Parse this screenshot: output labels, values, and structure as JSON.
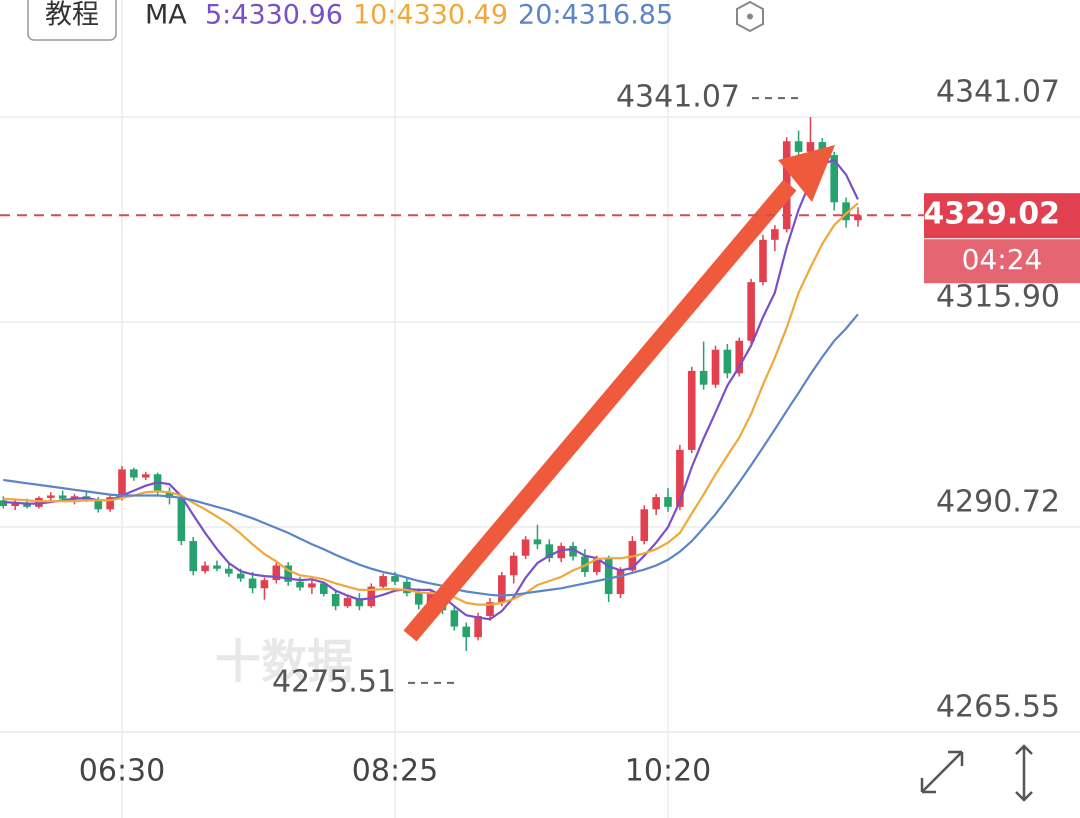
{
  "chart_data": {
    "type": "candlestick",
    "tutorial_button": "教程",
    "indicator_label": "MA",
    "categories": [
      null,
      null,
      null,
      null,
      null,
      null,
      null,
      null,
      null,
      null,
      "06:30",
      null,
      null,
      null,
      null,
      null,
      null,
      null,
      null,
      null,
      null,
      null,
      null,
      null,
      null,
      null,
      null,
      null,
      null,
      null,
      null,
      null,
      null,
      "08:25",
      null,
      null,
      null,
      null,
      null,
      null,
      null,
      null,
      null,
      null,
      null,
      null,
      null,
      null,
      null,
      null,
      null,
      null,
      null,
      null,
      null,
      null,
      "10:20",
      null,
      null,
      null,
      null,
      null,
      null,
      null,
      null,
      null,
      null,
      null,
      null,
      null,
      null,
      null,
      null
    ],
    "ohlc": [
      [
        4294,
        4294.5,
        4293,
        4293.3
      ],
      [
        4293.3,
        4294,
        4292.8,
        4293.6
      ],
      [
        4293.6,
        4294.2,
        4293,
        4293.2
      ],
      [
        4293.2,
        4294.5,
        4293,
        4294.3
      ],
      [
        4294.3,
        4295,
        4293.8,
        4294.6
      ],
      [
        4294.6,
        4295.2,
        4293.9,
        4294.2
      ],
      [
        4294.2,
        4294.8,
        4293.5,
        4294.5
      ],
      [
        4294.5,
        4295,
        4293.8,
        4294
      ],
      [
        4294,
        4294.4,
        4292.5,
        4292.9
      ],
      [
        4292.9,
        4294.8,
        4292.6,
        4294.4
      ],
      [
        4294.4,
        4298.2,
        4294,
        4297.8
      ],
      [
        4297.8,
        4298,
        4296.4,
        4296.8
      ],
      [
        4296.8,
        4297.5,
        4296.5,
        4297.2
      ],
      [
        4297.2,
        4297.4,
        4294.6,
        4295
      ],
      [
        4295,
        4295.6,
        4293.5,
        4294.3
      ],
      [
        4294.3,
        4294.5,
        4288.5,
        4289
      ],
      [
        4289,
        4289.5,
        4284.8,
        4285.3
      ],
      [
        4285.3,
        4286.5,
        4285,
        4286
      ],
      [
        4286,
        4286.6,
        4285.3,
        4285.6
      ],
      [
        4285.6,
        4286.2,
        4284.6,
        4285
      ],
      [
        4285,
        4285.6,
        4284,
        4284.4
      ],
      [
        4284.4,
        4285.2,
        4282.6,
        4283.2
      ],
      [
        4283.2,
        4284.5,
        4281.8,
        4284.2
      ],
      [
        4284.2,
        4286.4,
        4283.8,
        4286
      ],
      [
        4286,
        4286.4,
        4283.5,
        4284
      ],
      [
        4284,
        4284.6,
        4282.9,
        4283.3
      ],
      [
        4283.3,
        4284.2,
        4282.5,
        4283.8
      ],
      [
        4283.8,
        4284,
        4282.2,
        4282.5
      ],
      [
        4282.5,
        4283,
        4280.5,
        4281
      ],
      [
        4281,
        4282.2,
        4280.8,
        4282
      ],
      [
        4282,
        4282.6,
        4280.5,
        4281
      ],
      [
        4281,
        4283.8,
        4280.8,
        4283.4
      ],
      [
        4283.4,
        4285,
        4283,
        4284.7
      ],
      [
        4284.7,
        4285.2,
        4283.6,
        4284
      ],
      [
        4284,
        4284.5,
        4282.2,
        4282.6
      ],
      [
        4282.6,
        4283.2,
        4280.6,
        4281.2
      ],
      [
        4281.2,
        4283,
        4280.8,
        4282.5
      ],
      [
        4282.5,
        4283,
        4280,
        4280.5
      ],
      [
        4280.5,
        4281,
        4278,
        4278.5
      ],
      [
        4278.5,
        4279,
        4275.51,
        4277.2
      ],
      [
        4277.2,
        4280.2,
        4276.8,
        4279.8
      ],
      [
        4279.8,
        4282,
        4279.2,
        4281.5
      ],
      [
        4281.5,
        4285.2,
        4281,
        4284.8
      ],
      [
        4284.8,
        4287.6,
        4283.8,
        4287.2
      ],
      [
        4287.2,
        4289.6,
        4286.8,
        4289.2
      ],
      [
        4289.2,
        4291,
        4288,
        4288.6
      ],
      [
        4288.6,
        4289.2,
        4286.4,
        4286.9
      ],
      [
        4286.9,
        4288.8,
        4286.4,
        4288.4
      ],
      [
        4288.4,
        4288.9,
        4286.6,
        4287.1
      ],
      [
        4287.1,
        4288,
        4284.6,
        4285.2
      ],
      [
        4285.2,
        4287.2,
        4284.8,
        4286.8
      ],
      [
        4286.8,
        4287.2,
        4281.5,
        4282.5
      ],
      [
        4282.5,
        4285.8,
        4282,
        4285.4
      ],
      [
        4285.4,
        4289.6,
        4285,
        4289
      ],
      [
        4289,
        4293.4,
        4288.6,
        4292.9
      ],
      [
        4292.9,
        4294.8,
        4292.2,
        4294.4
      ],
      [
        4294.4,
        4295.5,
        4292.6,
        4293.2
      ],
      [
        4293.2,
        4300.8,
        4292.8,
        4300.2
      ],
      [
        4300.2,
        4310.4,
        4299.8,
        4309.9
      ],
      [
        4309.9,
        4313.5,
        4307.6,
        4308.2
      ],
      [
        4308.2,
        4313,
        4307.8,
        4312.5
      ],
      [
        4312.5,
        4313.2,
        4309,
        4309.6
      ],
      [
        4309.6,
        4314,
        4309.2,
        4313.6
      ],
      [
        4313.6,
        4321.2,
        4313.2,
        4320.8
      ],
      [
        4320.8,
        4326.6,
        4320.4,
        4326
      ],
      [
        4326,
        4327.8,
        4324.6,
        4327.3
      ],
      [
        4327.3,
        4338.6,
        4326.9,
        4338.1
      ],
      [
        4338.1,
        4339.4,
        4336.2,
        4336.8
      ],
      [
        4336.8,
        4341.07,
        4336.4,
        4338
      ],
      [
        4338,
        4338.5,
        4335.8,
        4336.4
      ],
      [
        4336.4,
        4336.8,
        4329.6,
        4330.6
      ],
      [
        4330.6,
        4331.2,
        4327.5,
        4328.4
      ],
      [
        4328.4,
        4330,
        4327.6,
        4329.02
      ]
    ],
    "up_color": "#e2404f",
    "down_color": "#27a26e",
    "ma": [
      {
        "legend_label": "5:4330.96",
        "color": "#7b4fc9",
        "values": [
          4293.8,
          4293.7,
          4293.6,
          4293.6,
          4293.8,
          4294,
          4294.2,
          4294.3,
          4294,
          4294,
          4294.6,
          4295.2,
          4295.8,
          4296.2,
          4296,
          4294.5,
          4292.2,
          4290,
          4288,
          4286.3,
          4285.3,
          4284.9,
          4284.7,
          4284.6,
          4284.4,
          4284.2,
          4284.3,
          4283.9,
          4282.9,
          4282.3,
          4281.8,
          4282,
          4282.4,
          4282.9,
          4283.1,
          4283,
          4283,
          4282.2,
          4281,
          4279.9,
          4279.6,
          4279.4,
          4280.4,
          4282.1,
          4284.5,
          4286.3,
          4287.2,
          4287.9,
          4288,
          4287.2,
          4286.9,
          4285.9,
          4285.4,
          4285.7,
          4287.2,
          4288.8,
          4290.7,
          4293.9,
          4298.1,
          4301.6,
          4304.8,
          4308.1,
          4310.4,
          4313,
          4316.5,
          4319.5,
          4325.1,
          4329.7,
          4333.2,
          4335.3,
          4335.8,
          4334,
          4330.96
        ]
      },
      {
        "legend_label": "10:4330.49",
        "color": "#f0a83a",
        "values": [
          4294.2,
          4294.1,
          4294,
          4293.9,
          4293.9,
          4293.9,
          4293.9,
          4294,
          4294,
          4294,
          4294.3,
          4294.6,
          4295,
          4295.1,
          4295,
          4294.6,
          4293.7,
          4292.9,
          4292,
          4291.1,
          4289.9,
          4288.6,
          4287.4,
          4286.5,
          4285.4,
          4284.8,
          4284.6,
          4284.3,
          4283.8,
          4283.4,
          4283,
          4283,
          4283.1,
          4283.1,
          4283,
          4282.7,
          4282.6,
          4282.5,
          4282.1,
          4281.4,
          4281.2,
          4281.2,
          4281.4,
          4281.9,
          4282.6,
          4283.6,
          4284.1,
          4284.6,
          4285.4,
          4286,
          4286.8,
          4286.9,
          4286.9,
          4287.1,
          4287.5,
          4288,
          4288.8,
          4290,
          4292.4,
          4294.7,
          4297.2,
          4299.5,
          4301.7,
          4304.6,
          4308.2,
          4311.5,
          4315.2,
          4319.5,
          4322.6,
          4325.5,
          4327.8,
          4329.2,
          4330.49
        ]
      },
      {
        "legend_label": "20:4316.85",
        "color": "#5b85c9",
        "values": [
          4296.5,
          4296.3,
          4296.1,
          4295.9,
          4295.7,
          4295.5,
          4295.3,
          4295.1,
          4294.9,
          4294.7,
          4294.6,
          4294.6,
          4294.6,
          4294.6,
          4294.5,
          4294.3,
          4294,
          4293.6,
          4293.2,
          4292.8,
          4292.3,
          4291.8,
          4291.2,
          4290.6,
          4290,
          4289.3,
          4288.6,
          4288,
          4287.3,
          4286.7,
          4286.1,
          4285.6,
          4285.2,
          4284.9,
          4284.5,
          4284.1,
          4283.8,
          4283.5,
          4283.1,
          4282.8,
          4282.6,
          4282.4,
          4282.3,
          4282.4,
          4282.6,
          4282.8,
          4283,
          4283.2,
          4283.5,
          4283.8,
          4284.1,
          4284.4,
          4284.7,
          4285.1,
          4285.5,
          4286,
          4286.7,
          4287.7,
          4289,
          4290.6,
          4292.3,
          4294.2,
          4296.2,
          4298.3,
          4300.5,
          4302.7,
          4305,
          4307.2,
          4309.5,
          4311.6,
          4313.6,
          4315.1,
          4316.85
        ]
      }
    ],
    "ylim": [
      4265.55,
      4355.45
    ],
    "yticks": [
      4341.07,
      {
        "value": 4315.9,
        "label": "4315.90"
      },
      4290.72,
      4265.55
    ],
    "high_annotation": 4341.07,
    "low_annotation": 4275.51,
    "last_price": 4329.02,
    "countdown": "04:24",
    "watermark": "十数据",
    "grid": true
  }
}
